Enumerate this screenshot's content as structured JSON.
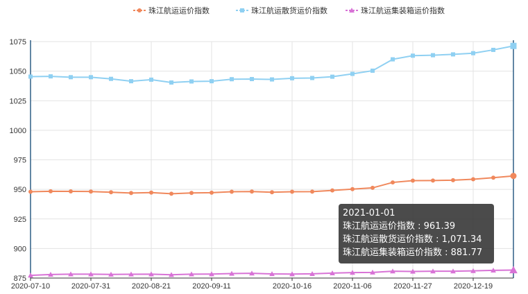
{
  "chart_data": {
    "type": "line",
    "title": "",
    "xlabel": "",
    "ylabel": "",
    "ylim": [
      875,
      1075
    ],
    "yticks": [
      875,
      900,
      925,
      950,
      975,
      1000,
      1025,
      1050,
      1075
    ],
    "x": [
      "2020-07-10",
      "2020-07-17",
      "2020-07-24",
      "2020-07-31",
      "2020-08-07",
      "2020-08-14",
      "2020-08-21",
      "2020-08-28",
      "2020-09-04",
      "2020-09-11",
      "2020-09-18",
      "2020-09-25",
      "2020-10-09",
      "2020-10-16",
      "2020-10-23",
      "2020-10-30",
      "2020-11-06",
      "2020-11-13",
      "2020-11-20",
      "2020-11-27",
      "2020-12-04",
      "2020-12-11",
      "2020-12-19",
      "2020-12-25",
      "2021-01-01"
    ],
    "xtick_labels": [
      "2020-07-10",
      "2020-07-31",
      "2020-08-21",
      "2020-09-11",
      "2020-10-16",
      "2020-11-06",
      "2020-11-27",
      "2020-12-19"
    ],
    "grid": true,
    "legend_position": "top-center",
    "series": [
      {
        "name": "珠江航运运价指数",
        "color": "#f0885c",
        "marker": "circle",
        "values": [
          948.0,
          948.4,
          948.3,
          948.2,
          947.6,
          946.9,
          947.3,
          946.3,
          947.0,
          947.2,
          948.0,
          948.2,
          947.6,
          948.0,
          948.1,
          949.1,
          950.2,
          951.3,
          955.9,
          957.4,
          957.5,
          957.8,
          958.6,
          959.9,
          961.39
        ]
      },
      {
        "name": "珠江航运散货运价指数",
        "color": "#8fd0f2",
        "marker": "square",
        "values": [
          1045.4,
          1045.6,
          1044.9,
          1044.9,
          1043.5,
          1041.5,
          1042.8,
          1040.4,
          1041.3,
          1041.5,
          1043.2,
          1043.3,
          1043.0,
          1044.0,
          1044.2,
          1045.3,
          1047.7,
          1050.4,
          1060.0,
          1063.1,
          1063.5,
          1064.2,
          1065.2,
          1068.0,
          1071.34
        ]
      },
      {
        "name": "珠江航运集装箱运价指数",
        "color": "#d873d6",
        "marker": "triangle",
        "values": [
          877.3,
          878.0,
          878.3,
          878.3,
          878.1,
          878.2,
          878.3,
          877.8,
          878.3,
          878.4,
          878.8,
          879.0,
          878.5,
          878.4,
          878.6,
          879.2,
          879.6,
          879.8,
          880.8,
          880.6,
          880.8,
          880.8,
          881.1,
          881.5,
          881.77
        ]
      }
    ],
    "tooltip": {
      "date": "2021-01-01",
      "lines": [
        "珠江航运运价指数 : 961.39",
        "珠江航运散货运价指数 : 1,071.34",
        "珠江航运集装箱运价指数 : 881.77"
      ]
    }
  }
}
